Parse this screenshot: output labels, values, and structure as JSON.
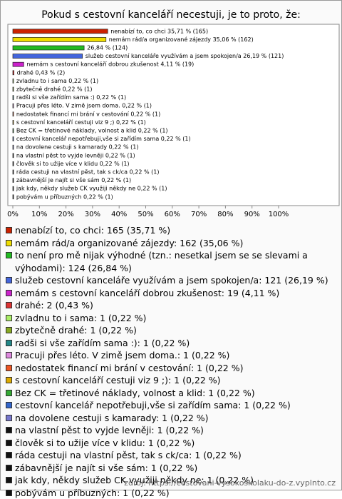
{
  "chart_data": {
    "type": "hbar",
    "title": "Pokud s cestovní kanceláří necestuji, je to proto, že:",
    "values": [
      35.71,
      35.06,
      26.84,
      26.19,
      4.11,
      0.43,
      0.22,
      0.22,
      0.22,
      0.22,
      0.22,
      0.22,
      0.22,
      0.22,
      0.22,
      0.22,
      0.22,
      0.22,
      0.22,
      0.22,
      0.22
    ],
    "value_labels": [
      "nenabízí to, co chci 35,71 % (165)",
      "nemám rád/a organizované zájezdy 35,06 % (162)",
      "26,84 % (124)",
      "služeb cestovní kanceláře využívám a jsem spokojen/a 26,19 % (121)",
      "nemám s cestovní kanceláří dobrou zkušenost 4,11 % (19)",
      "drahé 0,43 % (2)",
      "zvladnu to i sama 0,22 % (1)",
      "zbytečně drahé 0,22 % (1)",
      "radši si vše zařídím sama :) 0,22 % (1)",
      "Pracuji přes léto. V zimě jsem doma. 0,22 % (1)",
      "nedostatek financí mi brání v cestování 0,22 % (1)",
      "s cestovní kanceláří cestuji viz 9 ;) 0,22 % (1)",
      "Bez CK = třetinové náklady, volnost a klid 0,22 % (1)",
      "cestovní kancelář nepotřebuji,vše si zařídím sama 0,22 % (1)",
      "na dovolene cestuji s kamarady 0,22 % (1)",
      "na vlastní pěst to vyjde levněji 0,22 % (1)",
      "člověk si to užije více v klidu 0,22 % (1)",
      "ráda cestuji na vlastní pěst, tak s ck/ca 0,22 % (1)",
      "zábavnější je najít si vše sám 0,22 % (1)",
      "jak kdy, někdy služeb CK využiji někdy ne 0,22 % (1)",
      "pobývám u příbuzných 0,22 % (1)"
    ],
    "legend_labels": [
      "nenabízí to, co chci: 165 (35,71 %)",
      "nemám rád/a organizované zájezdy: 162 (35,06 %)",
      "to není pro mě nijak výhodné (tzn.: nesetkal jsem se se slevami a výhodami): 124 (26,84 %)",
      "služeb cestovní kanceláře využívám a jsem spokojen/a: 121 (26,19 %)",
      "nemám s cestovní kanceláří dobrou zkušenost: 19 (4,11 %)",
      "drahé: 2 (0,43 %)",
      "zvladnu to i sama: 1 (0,22 %)",
      "zbytečně drahé: 1 (0,22 %)",
      "radši si vše zařídím sama :): 1 (0,22 %)",
      "Pracuji přes léto. V zimě jsem doma.: 1 (0,22 %)",
      "nedostatek financí mi brání v cestování: 1 (0,22 %)",
      "s cestovní kanceláří cestuji viz 9 ;): 1 (0,22 %)",
      "Bez CK = třetinové náklady, volnost a klid: 1 (0,22 %)",
      "cestovní kancelář nepotřebuji,vše si zařídím sama: 1 (0,22 %)",
      "na dovolene cestuji s kamarady: 1 (0,22 %)",
      "na vlastní pěst to vyjde levněji: 1 (0,22 %)",
      "člověk si to užije více v klidu: 1 (0,22 %)",
      "ráda cestuji na vlastní pěst, tak s ck/ca: 1 (0,22 %)",
      "zábavnější je najít si vše sám: 1 (0,22 %)",
      "jak kdy, někdy služeb CK využiji někdy ne: 1 (0,22 %)",
      "pobývám u příbuzných: 1 (0,22 %)"
    ],
    "colors": [
      "#cc2200",
      "#eedd00",
      "#22bb22",
      "#4466dd",
      "#cc22cc",
      "#dd3333",
      "#aaee66",
      "#88aa22",
      "#228888",
      "#dd88dd",
      "#ee5522",
      "#ddaa00",
      "#33aa33",
      "#3366cc",
      "#7777cc",
      "#111111",
      "#111111",
      "#111111",
      "#111111",
      "#111111",
      "#111111"
    ],
    "xlim": [
      0,
      100
    ],
    "xticks": [
      {
        "value": 0,
        "label": "0%"
      },
      {
        "value": 10,
        "label": "10%"
      },
      {
        "value": 20,
        "label": "20%"
      },
      {
        "value": 30,
        "label": "30%"
      },
      {
        "value": 40,
        "label": "40%"
      },
      {
        "value": 50,
        "label": "50%"
      },
      {
        "value": 60,
        "label": "60%"
      },
      {
        "value": 70,
        "label": "70%"
      },
      {
        "value": 80,
        "label": "80%"
      },
      {
        "value": 90,
        "label": "90%"
      },
      {
        "value": 100,
        "label": "100%"
      }
    ],
    "source": "zdroj: https://cestovani-vysokoskolaku-do-z.vyplnto.cz"
  }
}
